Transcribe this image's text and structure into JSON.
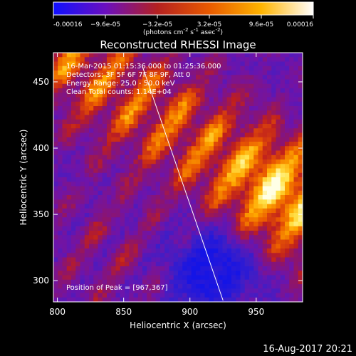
{
  "chart_data": {
    "type": "heatmap",
    "title": "Reconstructed RHESSI Image",
    "xlabel": "Heliocentric X (arcsec)",
    "ylabel": "Heliocentric Y (arcsec)",
    "xlim": [
      797,
      985
    ],
    "ylim": [
      284,
      472
    ],
    "xticks": [
      800,
      850,
      900,
      950
    ],
    "yticks": [
      300,
      350,
      400,
      450
    ],
    "grid": false,
    "colorbar": {
      "label_text": "(photons cm",
      "label_sup1": "-2",
      "label_mid": " s",
      "label_sup2": "-1",
      "label_mid2": " asec",
      "label_sup3": "-2",
      "label_end": ")",
      "min": -0.00016,
      "max": 0.00016,
      "ticks": [
        "-0.00016",
        "−9.6e-05",
        "−3.2e-05",
        "3.2e-05",
        "9.6e-05",
        "0.00016"
      ],
      "colors": [
        "#1010ff",
        "#6a0fbf",
        "#b42020",
        "#e85a00",
        "#ffb400",
        "#ffffff"
      ]
    },
    "annotations": [
      "16-Mar-2015 01:15:36.000 to 01:25:36.000",
      "Detectors: 3F 5F 6F 7F 8F 9F, Att 0",
      "Energy Range: 25.0 - 50.0 keV",
      "Clean     Total counts: 1.14E+04"
    ],
    "peak_text": "Position of Peak = [967,367]",
    "peak": [
      967,
      367
    ],
    "limb_line": [
      [
        864,
        462
      ],
      [
        925,
        285
      ]
    ],
    "bright_band": {
      "start": [
        805,
        470
      ],
      "end": [
        985,
        355
      ],
      "width": 30
    },
    "dark_spot": [
      918,
      310
    ]
  },
  "footer": {
    "date": "16-Aug-2017 20:21"
  }
}
